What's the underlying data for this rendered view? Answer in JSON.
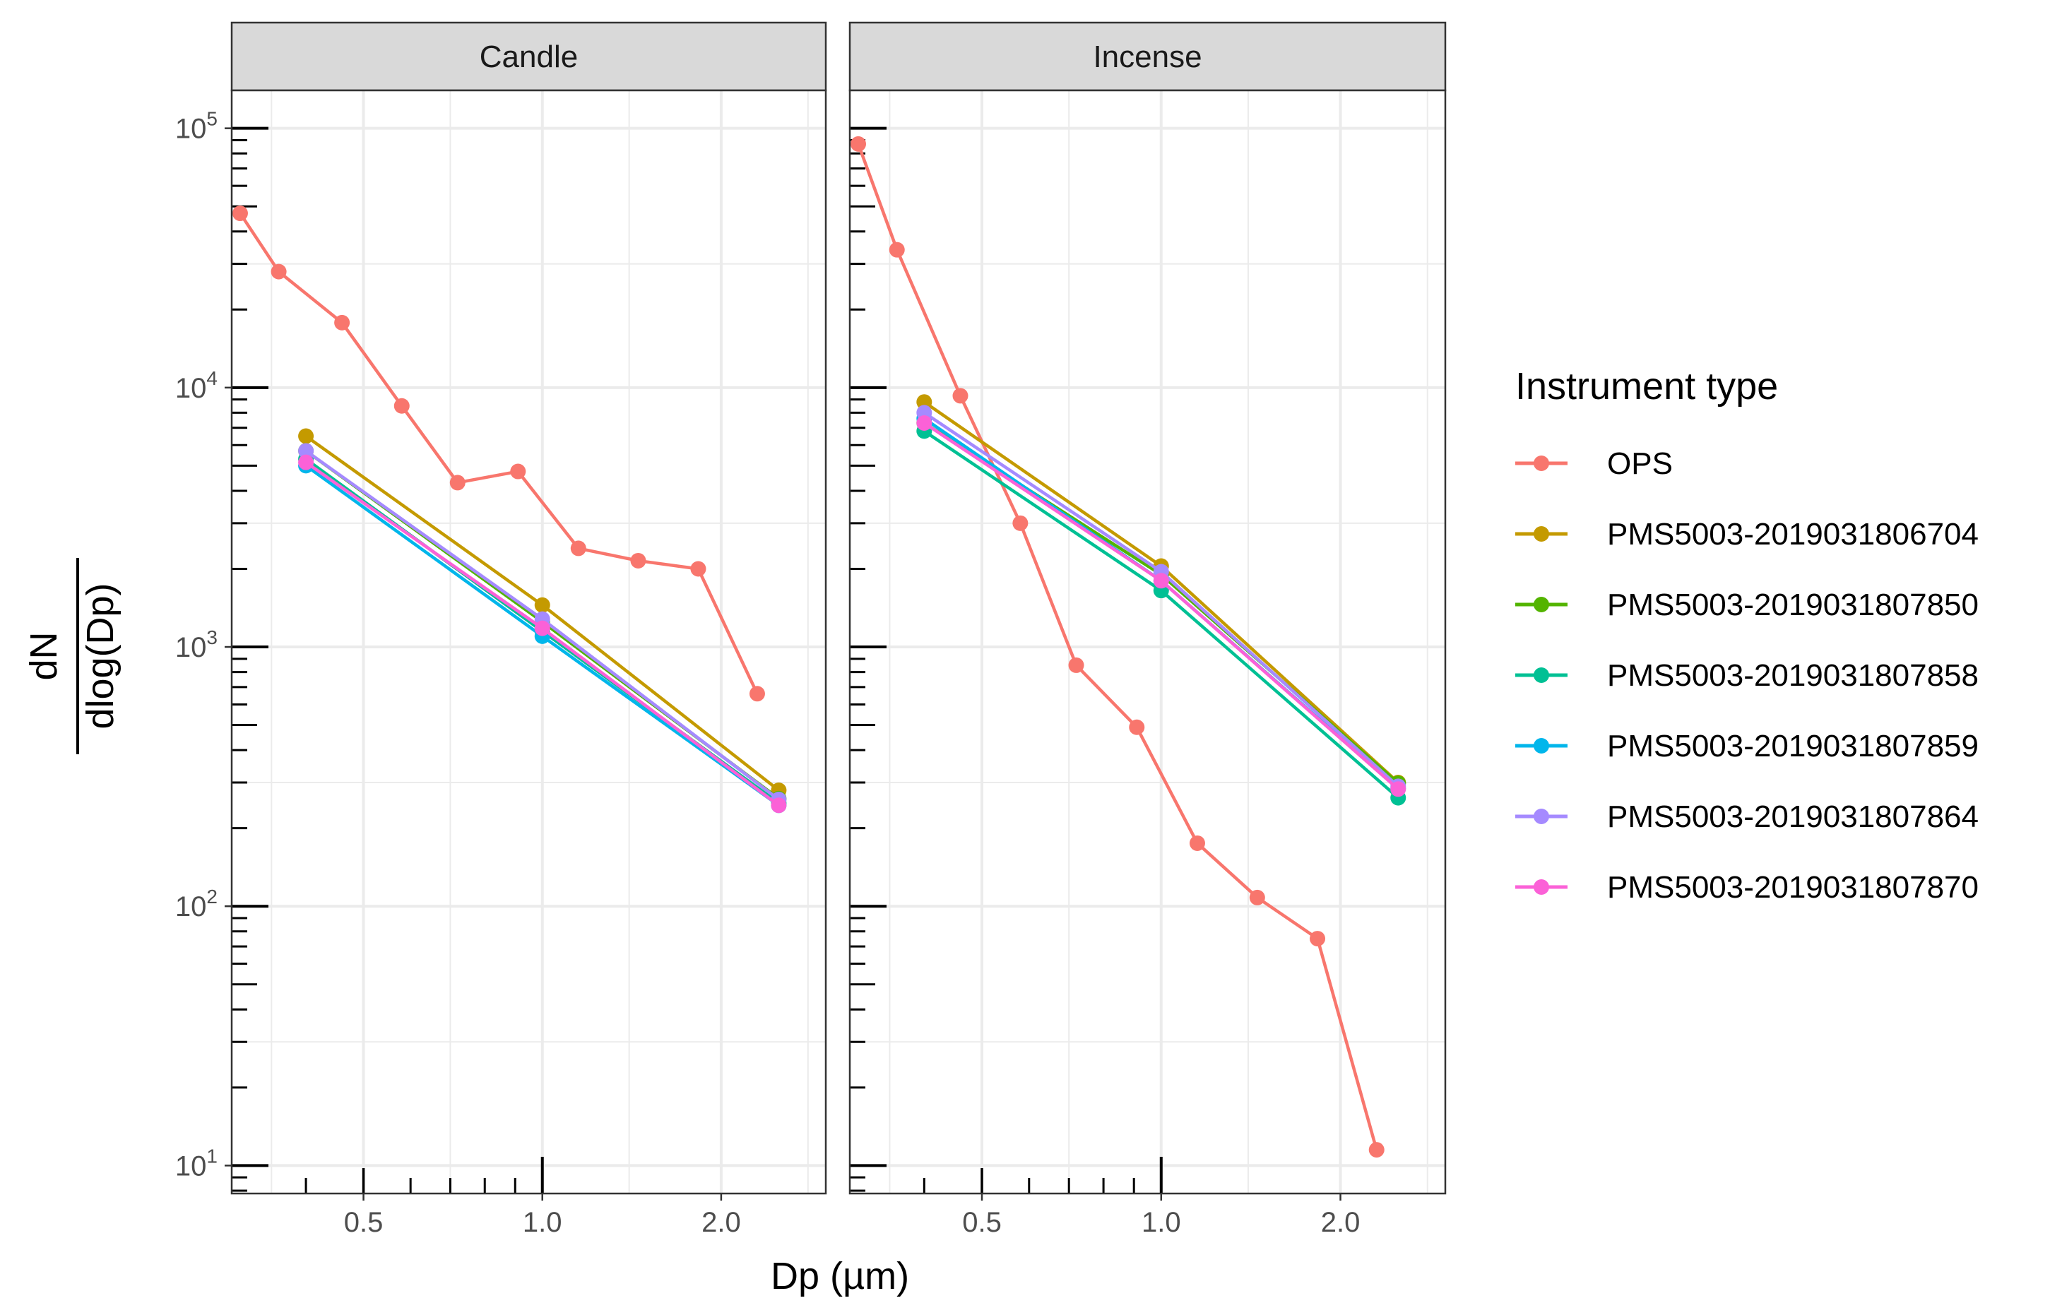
{
  "chart_data": {
    "type": "line",
    "xscale": "log",
    "yscale": "log",
    "xlabel": "Dp (µm)",
    "ylabel_numerator": "dN",
    "ylabel_denominator": "dlog(Dp)",
    "xlim": [
      0.3,
      3.0
    ],
    "ylim": [
      7.8,
      140000
    ],
    "x_ticks": [
      {
        "value": 0.5,
        "label": "0.5"
      },
      {
        "value": 1.0,
        "label": "1.0"
      },
      {
        "value": 2.0,
        "label": "2.0"
      }
    ],
    "y_ticks": [
      {
        "value": 10,
        "base": "10",
        "exp": "1"
      },
      {
        "value": 100,
        "base": "10",
        "exp": "2"
      },
      {
        "value": 1000,
        "base": "10",
        "exp": "3"
      },
      {
        "value": 10000,
        "base": "10",
        "exp": "4"
      },
      {
        "value": 100000,
        "base": "10",
        "exp": "5"
      }
    ],
    "legend": {
      "title": "Instrument type",
      "position": "right"
    },
    "colors": {
      "OPS": "#F8766D",
      "PMS5003-2019031806704": "#C49A00",
      "PMS5003-2019031807850": "#53B400",
      "PMS5003-2019031807858": "#00C094",
      "PMS5003-2019031807859": "#00B6EB",
      "PMS5003-2019031807864": "#A58AFF",
      "PMS5003-2019031807870": "#FB61D7"
    },
    "series_order": [
      "OPS",
      "PMS5003-2019031806704",
      "PMS5003-2019031807850",
      "PMS5003-2019031807858",
      "PMS5003-2019031807859",
      "PMS5003-2019031807864",
      "PMS5003-2019031807870"
    ],
    "panels": [
      {
        "title": "Candle",
        "series": [
          {
            "name": "OPS",
            "x": [
              0.31,
              0.36,
              0.46,
              0.58,
              0.72,
              0.91,
              1.15,
              1.45,
              1.83,
              2.3
            ],
            "y": [
              47000,
              28000,
              17800,
              8500,
              4300,
              4750,
              2400,
              2150,
              2000,
              660
            ]
          },
          {
            "name": "PMS5003-2019031806704",
            "x": [
              0.4,
              1.0,
              2.5
            ],
            "y": [
              6500,
              1450,
              280
            ]
          },
          {
            "name": "PMS5003-2019031807850",
            "x": [
              0.4,
              1.0,
              2.5
            ],
            "y": [
              5700,
              1250,
              260
            ]
          },
          {
            "name": "PMS5003-2019031807858",
            "x": [
              0.4,
              1.0,
              2.5
            ],
            "y": [
              5300,
              1150,
              250
            ]
          },
          {
            "name": "PMS5003-2019031807859",
            "x": [
              0.4,
              1.0,
              2.5
            ],
            "y": [
              5000,
              1100,
              245
            ]
          },
          {
            "name": "PMS5003-2019031807864",
            "x": [
              0.4,
              1.0,
              2.5
            ],
            "y": [
              5700,
              1280,
              258
            ]
          },
          {
            "name": "PMS5003-2019031807870",
            "x": [
              0.4,
              1.0,
              2.5
            ],
            "y": [
              5150,
              1180,
              245
            ]
          }
        ]
      },
      {
        "title": "Incense",
        "series": [
          {
            "name": "OPS",
            "x": [
              0.31,
              0.36,
              0.46,
              0.58,
              0.72,
              0.91,
              1.15,
              1.45,
              1.83,
              2.3
            ],
            "y": [
              87000,
              34000,
              9300,
              3000,
              850,
              490,
              175,
              108,
              75,
              11.5
            ]
          },
          {
            "name": "PMS5003-2019031806704",
            "x": [
              0.4,
              1.0,
              2.5
            ],
            "y": [
              8800,
              2050,
              300
            ]
          },
          {
            "name": "PMS5003-2019031807850",
            "x": [
              0.4,
              1.0,
              2.5
            ],
            "y": [
              7300,
              1900,
              298
            ]
          },
          {
            "name": "PMS5003-2019031807858",
            "x": [
              0.4,
              1.0,
              2.5
            ],
            "y": [
              6800,
              1650,
              262
            ]
          },
          {
            "name": "PMS5003-2019031807859",
            "x": [
              0.4,
              1.0,
              2.5
            ],
            "y": [
              7600,
              1800,
              285
            ]
          },
          {
            "name": "PMS5003-2019031807864",
            "x": [
              0.4,
              1.0,
              2.5
            ],
            "y": [
              8000,
              1950,
              290
            ]
          },
          {
            "name": "PMS5003-2019031807870",
            "x": [
              0.4,
              1.0,
              2.5
            ],
            "y": [
              7300,
              1800,
              283
            ]
          }
        ]
      }
    ]
  }
}
